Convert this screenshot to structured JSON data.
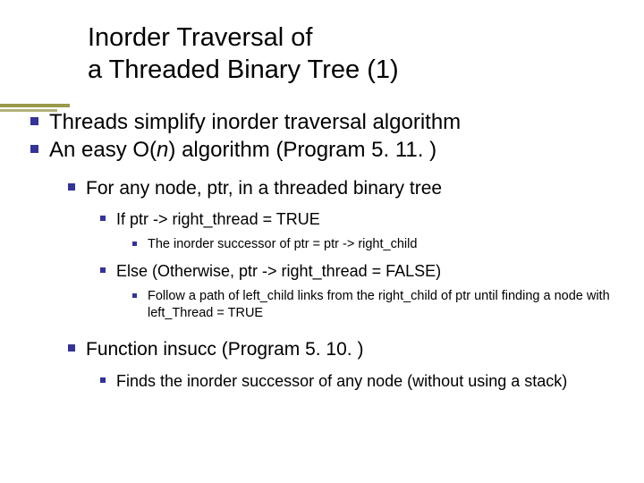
{
  "title": {
    "line1": "Inorder Traversal of",
    "line2": " a Threaded Binary Tree (1)"
  },
  "bullets": {
    "l1a": "Threads simplify inorder traversal algorithm",
    "l1b_pre": "An easy O(",
    "l1b_n": "n",
    "l1b_post": ") algorithm (Program 5. 11. )",
    "l2a": "For any node, ptr, in a threaded binary tree",
    "l3a": "If ptr -> right_thread = TRUE",
    "l4a": "The inorder successor of ptr = ptr -> right_child",
    "l3b": "Else (Otherwise, ptr -> right_thread = FALSE)",
    "l4b": "Follow a path of left_child links from the right_child of ptr until finding a node with left_Thread = TRUE",
    "l2b": "Function insucc (Program 5. 10. )",
    "l3c": "Finds the inorder successor of any node (without using a stack)"
  },
  "colors": {
    "bullet": "#333399",
    "text": "#000000",
    "bg": "#ffffff"
  }
}
